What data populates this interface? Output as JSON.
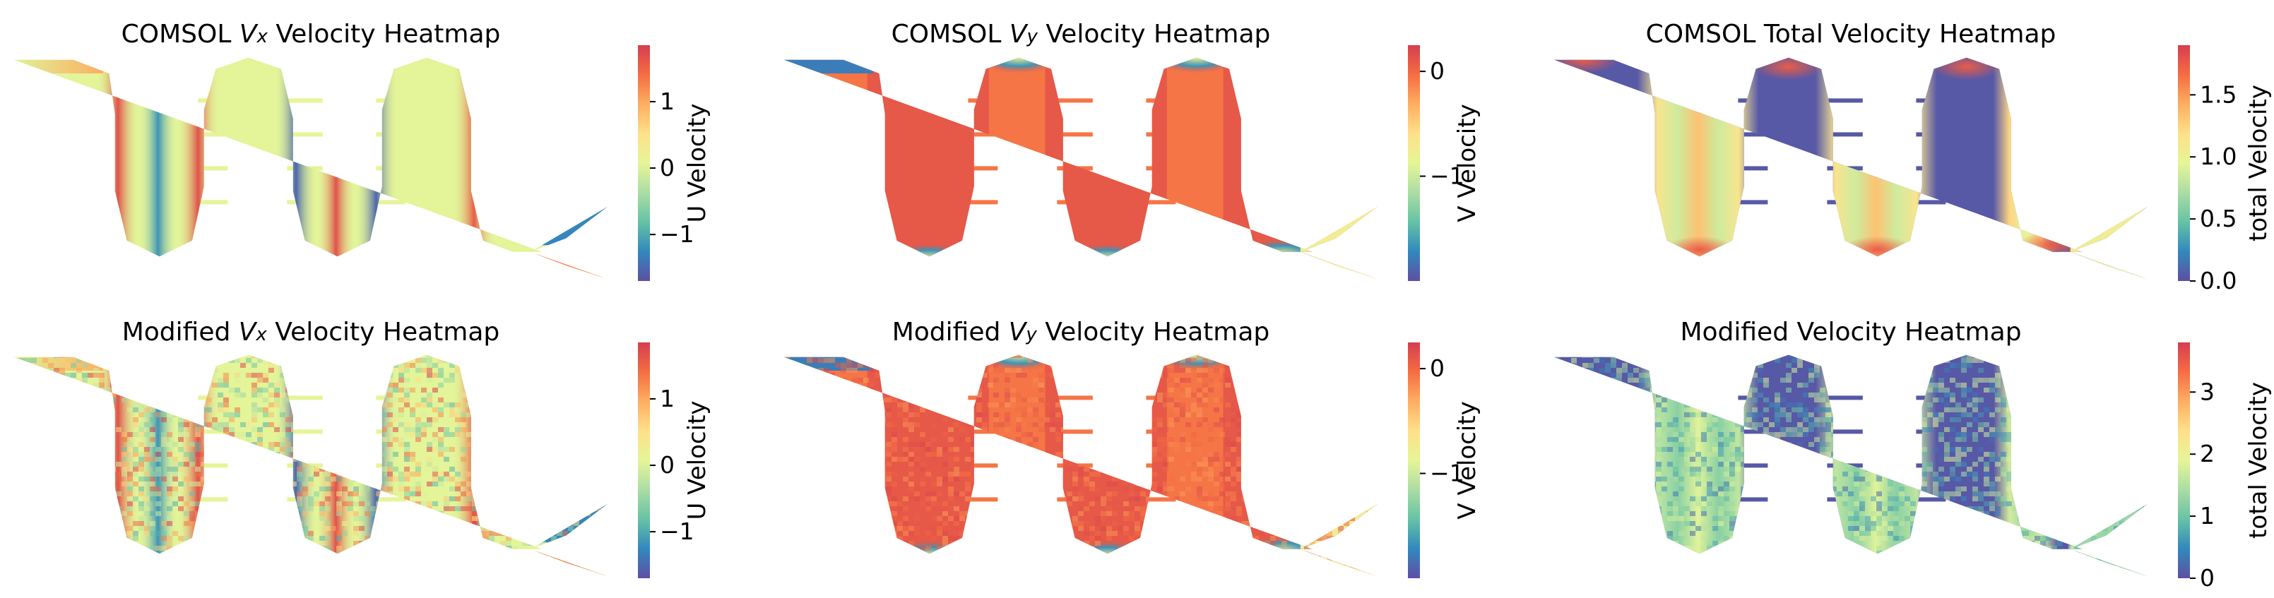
{
  "chart_data": [
    {
      "type": "heatmap",
      "title_prefix": "COMSOL",
      "title_symbol": "V",
      "title_subscript": "x",
      "title_suffix": "Velocity Heatmap",
      "field": "u",
      "noise": false,
      "colorbar": {
        "label": "U Velocity",
        "min": -1.7,
        "max": 1.85,
        "ticks": [
          -1,
          0,
          1
        ],
        "tick_labels": [
          "−1",
          "0",
          "1"
        ]
      }
    },
    {
      "type": "heatmap",
      "title_prefix": "COMSOL",
      "title_symbol": "V",
      "title_subscript": "y",
      "title_suffix": "Velocity Heatmap",
      "field": "v",
      "noise": false,
      "colorbar": {
        "label": "V Velocity",
        "min": -2.0,
        "max": 0.25,
        "ticks": [
          -1,
          0
        ],
        "tick_labels": [
          "−1",
          "0"
        ]
      }
    },
    {
      "type": "heatmap",
      "title_prefix": "COMSOL",
      "title_symbol": "",
      "title_subscript": "",
      "title_suffix": "Total Velocity Heatmap",
      "field": "total",
      "noise": false,
      "colorbar": {
        "label": "total Velocity",
        "min": 0.0,
        "max": 1.9,
        "ticks": [
          0.0,
          0.5,
          1.0,
          1.5
        ],
        "tick_labels": [
          "0.0",
          "0.5",
          "1.0",
          "1.5"
        ]
      }
    },
    {
      "type": "heatmap",
      "title_prefix": "Modified",
      "title_symbol": "V",
      "title_subscript": "x",
      "title_suffix": "Velocity Heatmap",
      "field": "u",
      "noise": true,
      "colorbar": {
        "label": "U Velocity",
        "min": -1.7,
        "max": 1.85,
        "ticks": [
          -1,
          0,
          1
        ],
        "tick_labels": [
          "−1",
          "0",
          "1"
        ]
      }
    },
    {
      "type": "heatmap",
      "title_prefix": "Modified",
      "title_symbol": "V",
      "title_subscript": "y",
      "title_suffix": "Velocity Heatmap",
      "field": "v",
      "noise": true,
      "colorbar": {
        "label": "V Velocity",
        "min": -2.0,
        "max": 0.25,
        "ticks": [
          -1,
          0
        ],
        "tick_labels": [
          "−1",
          "0"
        ]
      }
    },
    {
      "type": "heatmap",
      "title_prefix": "Modified",
      "title_symbol": "",
      "title_subscript": "",
      "title_suffix": "Velocity Heatmap",
      "field": "total",
      "noise": true,
      "colorbar": {
        "label": "total Velocity",
        "min": 0,
        "max": 3.8,
        "ticks": [
          0,
          1,
          2,
          3
        ],
        "tick_labels": [
          "0",
          "1",
          "2",
          "3"
        ]
      }
    }
  ],
  "colormap": [
    "#5e4fa2",
    "#3288bd",
    "#66c2a5",
    "#abdda4",
    "#e6f598",
    "#fee08b",
    "#fdae61",
    "#f46d43",
    "#d53e4f"
  ]
}
